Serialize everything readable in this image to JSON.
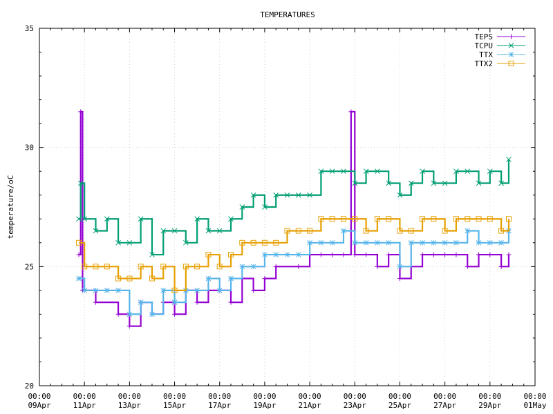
{
  "chart_data": {
    "type": "line",
    "title": "TEMPERATURES",
    "xlabel": "",
    "ylabel": "temperature/oC",
    "ylim": [
      20,
      35
    ],
    "yticks": [
      "20",
      "25",
      "30",
      "35"
    ],
    "xlim": [
      "2021-04-09 00:00",
      "2021-05-01 00:00"
    ],
    "xtick_labels": [
      {
        "time": "00:00",
        "date": "09Apr"
      },
      {
        "time": "00:00",
        "date": "11Apr"
      },
      {
        "time": "00:00",
        "date": "13Apr"
      },
      {
        "time": "00:00",
        "date": "15Apr"
      },
      {
        "time": "00:00",
        "date": "17Apr"
      },
      {
        "time": "00:00",
        "date": "19Apr"
      },
      {
        "time": "00:00",
        "date": "21Apr"
      },
      {
        "time": "00:00",
        "date": "23Apr"
      },
      {
        "time": "00:00",
        "date": "25Apr"
      },
      {
        "time": "00:00",
        "date": "27Apr"
      },
      {
        "time": "00:00",
        "date": "29Apr"
      },
      {
        "time": "00:00",
        "date": "01May"
      }
    ],
    "grid": true,
    "legend_position": "top-right",
    "series": [
      {
        "name": "TEPS",
        "color": "#9400d3",
        "marker": "plus",
        "points": [
          [
            "2021-04-10 18:00",
            25.5
          ],
          [
            "2021-04-10 20:00",
            31.5
          ],
          [
            "2021-04-10 22:00",
            24.0
          ],
          [
            "2021-04-11 12:00",
            23.5
          ],
          [
            "2021-04-12 12:00",
            23.0
          ],
          [
            "2021-04-13 00:00",
            22.5
          ],
          [
            "2021-04-13 12:00",
            23.5
          ],
          [
            "2021-04-14 00:00",
            23.0
          ],
          [
            "2021-04-14 12:00",
            23.5
          ],
          [
            "2021-04-15 00:00",
            23.0
          ],
          [
            "2021-04-15 12:00",
            24.0
          ],
          [
            "2021-04-16 00:00",
            23.5
          ],
          [
            "2021-04-16 12:00",
            24.0
          ],
          [
            "2021-04-17 00:00",
            24.0
          ],
          [
            "2021-04-17 12:00",
            23.5
          ],
          [
            "2021-04-18 00:00",
            24.5
          ],
          [
            "2021-04-18 12:00",
            24.0
          ],
          [
            "2021-04-19 00:00",
            24.5
          ],
          [
            "2021-04-19 12:00",
            25.0
          ],
          [
            "2021-04-20 12:00",
            25.0
          ],
          [
            "2021-04-21 00:00",
            25.5
          ],
          [
            "2021-04-21 12:00",
            25.5
          ],
          [
            "2021-04-22 00:00",
            25.5
          ],
          [
            "2021-04-22 12:00",
            25.5
          ],
          [
            "2021-04-22 20:00",
            31.5
          ],
          [
            "2021-04-23 00:00",
            25.5
          ],
          [
            "2021-04-23 12:00",
            25.5
          ],
          [
            "2021-04-24 00:00",
            25.0
          ],
          [
            "2021-04-24 12:00",
            25.5
          ],
          [
            "2021-04-25 00:00",
            24.5
          ],
          [
            "2021-04-25 12:00",
            25.0
          ],
          [
            "2021-04-26 00:00",
            25.5
          ],
          [
            "2021-04-26 12:00",
            25.5
          ],
          [
            "2021-04-27 00:00",
            25.5
          ],
          [
            "2021-04-27 12:00",
            25.5
          ],
          [
            "2021-04-28 00:00",
            25.0
          ],
          [
            "2021-04-28 12:00",
            25.5
          ],
          [
            "2021-04-29 00:00",
            25.5
          ],
          [
            "2021-04-29 12:00",
            25.0
          ],
          [
            "2021-04-29 20:00",
            25.5
          ]
        ]
      },
      {
        "name": "TCPU",
        "color": "#009e73",
        "marker": "cross",
        "points": [
          [
            "2021-04-10 18:00",
            27.0
          ],
          [
            "2021-04-10 20:00",
            28.5
          ],
          [
            "2021-04-11 00:00",
            27.0
          ],
          [
            "2021-04-11 12:00",
            26.5
          ],
          [
            "2021-04-12 00:00",
            27.0
          ],
          [
            "2021-04-12 12:00",
            26.0
          ],
          [
            "2021-04-13 00:00",
            26.0
          ],
          [
            "2021-04-13 12:00",
            27.0
          ],
          [
            "2021-04-14 00:00",
            25.5
          ],
          [
            "2021-04-14 12:00",
            26.5
          ],
          [
            "2021-04-15 00:00",
            26.5
          ],
          [
            "2021-04-15 12:00",
            26.0
          ],
          [
            "2021-04-16 00:00",
            27.0
          ],
          [
            "2021-04-16 12:00",
            26.5
          ],
          [
            "2021-04-17 00:00",
            26.5
          ],
          [
            "2021-04-17 12:00",
            27.0
          ],
          [
            "2021-04-18 00:00",
            27.5
          ],
          [
            "2021-04-18 12:00",
            28.0
          ],
          [
            "2021-04-19 00:00",
            27.5
          ],
          [
            "2021-04-19 12:00",
            28.0
          ],
          [
            "2021-04-20 00:00",
            28.0
          ],
          [
            "2021-04-20 12:00",
            28.0
          ],
          [
            "2021-04-21 00:00",
            28.0
          ],
          [
            "2021-04-21 12:00",
            29.0
          ],
          [
            "2021-04-22 00:00",
            29.0
          ],
          [
            "2021-04-22 12:00",
            29.0
          ],
          [
            "2021-04-23 00:00",
            28.5
          ],
          [
            "2021-04-23 12:00",
            29.0
          ],
          [
            "2021-04-24 00:00",
            29.0
          ],
          [
            "2021-04-24 12:00",
            28.5
          ],
          [
            "2021-04-25 00:00",
            28.0
          ],
          [
            "2021-04-25 12:00",
            28.5
          ],
          [
            "2021-04-26 00:00",
            29.0
          ],
          [
            "2021-04-26 12:00",
            28.5
          ],
          [
            "2021-04-27 00:00",
            28.5
          ],
          [
            "2021-04-27 12:00",
            29.0
          ],
          [
            "2021-04-28 00:00",
            29.0
          ],
          [
            "2021-04-28 12:00",
            28.5
          ],
          [
            "2021-04-29 00:00",
            29.0
          ],
          [
            "2021-04-29 12:00",
            28.5
          ],
          [
            "2021-04-29 20:00",
            29.5
          ]
        ]
      },
      {
        "name": "TTX",
        "color": "#56b4e9",
        "marker": "star",
        "points": [
          [
            "2021-04-10 18:00",
            24.5
          ],
          [
            "2021-04-11 00:00",
            24.0
          ],
          [
            "2021-04-11 12:00",
            24.0
          ],
          [
            "2021-04-12 00:00",
            24.0
          ],
          [
            "2021-04-12 12:00",
            24.0
          ],
          [
            "2021-04-13 00:00",
            23.0
          ],
          [
            "2021-04-13 12:00",
            23.5
          ],
          [
            "2021-04-14 00:00",
            23.0
          ],
          [
            "2021-04-14 12:00",
            24.0
          ],
          [
            "2021-04-15 00:00",
            23.5
          ],
          [
            "2021-04-15 12:00",
            24.0
          ],
          [
            "2021-04-16 00:00",
            24.0
          ],
          [
            "2021-04-16 12:00",
            24.5
          ],
          [
            "2021-04-17 00:00",
            24.0
          ],
          [
            "2021-04-17 12:00",
            24.5
          ],
          [
            "2021-04-18 00:00",
            25.0
          ],
          [
            "2021-04-18 12:00",
            25.0
          ],
          [
            "2021-04-19 00:00",
            25.5
          ],
          [
            "2021-04-19 12:00",
            25.5
          ],
          [
            "2021-04-20 00:00",
            25.5
          ],
          [
            "2021-04-20 12:00",
            25.5
          ],
          [
            "2021-04-21 00:00",
            26.0
          ],
          [
            "2021-04-21 12:00",
            26.0
          ],
          [
            "2021-04-22 00:00",
            26.0
          ],
          [
            "2021-04-22 12:00",
            26.5
          ],
          [
            "2021-04-23 00:00",
            26.0
          ],
          [
            "2021-04-23 12:00",
            26.0
          ],
          [
            "2021-04-24 00:00",
            26.0
          ],
          [
            "2021-04-24 12:00",
            26.0
          ],
          [
            "2021-04-25 00:00",
            25.0
          ],
          [
            "2021-04-25 12:00",
            26.0
          ],
          [
            "2021-04-26 00:00",
            26.0
          ],
          [
            "2021-04-26 12:00",
            26.0
          ],
          [
            "2021-04-27 00:00",
            26.0
          ],
          [
            "2021-04-27 12:00",
            26.0
          ],
          [
            "2021-04-28 00:00",
            26.5
          ],
          [
            "2021-04-28 12:00",
            26.0
          ],
          [
            "2021-04-29 00:00",
            26.0
          ],
          [
            "2021-04-29 12:00",
            26.0
          ],
          [
            "2021-04-29 20:00",
            26.5
          ]
        ]
      },
      {
        "name": "TTX2",
        "color": "#e69f00",
        "marker": "box",
        "points": [
          [
            "2021-04-10 18:00",
            26.0
          ],
          [
            "2021-04-11 00:00",
            25.0
          ],
          [
            "2021-04-11 12:00",
            25.0
          ],
          [
            "2021-04-12 00:00",
            25.0
          ],
          [
            "2021-04-12 12:00",
            24.5
          ],
          [
            "2021-04-13 00:00",
            24.5
          ],
          [
            "2021-04-13 12:00",
            25.0
          ],
          [
            "2021-04-14 00:00",
            24.5
          ],
          [
            "2021-04-14 12:00",
            25.0
          ],
          [
            "2021-04-15 00:00",
            24.0
          ],
          [
            "2021-04-15 12:00",
            25.0
          ],
          [
            "2021-04-16 00:00",
            25.0
          ],
          [
            "2021-04-16 12:00",
            25.5
          ],
          [
            "2021-04-17 00:00",
            25.0
          ],
          [
            "2021-04-17 12:00",
            25.5
          ],
          [
            "2021-04-18 00:00",
            26.0
          ],
          [
            "2021-04-18 12:00",
            26.0
          ],
          [
            "2021-04-19 00:00",
            26.0
          ],
          [
            "2021-04-19 12:00",
            26.0
          ],
          [
            "2021-04-20 00:00",
            26.5
          ],
          [
            "2021-04-20 12:00",
            26.5
          ],
          [
            "2021-04-21 00:00",
            26.5
          ],
          [
            "2021-04-21 12:00",
            27.0
          ],
          [
            "2021-04-22 00:00",
            27.0
          ],
          [
            "2021-04-22 12:00",
            27.0
          ],
          [
            "2021-04-23 00:00",
            27.0
          ],
          [
            "2021-04-23 12:00",
            26.5
          ],
          [
            "2021-04-24 00:00",
            27.0
          ],
          [
            "2021-04-24 12:00",
            27.0
          ],
          [
            "2021-04-25 00:00",
            26.5
          ],
          [
            "2021-04-25 12:00",
            26.5
          ],
          [
            "2021-04-26 00:00",
            27.0
          ],
          [
            "2021-04-26 12:00",
            27.0
          ],
          [
            "2021-04-27 00:00",
            26.5
          ],
          [
            "2021-04-27 12:00",
            27.0
          ],
          [
            "2021-04-28 00:00",
            27.0
          ],
          [
            "2021-04-28 12:00",
            27.0
          ],
          [
            "2021-04-29 00:00",
            27.0
          ],
          [
            "2021-04-29 12:00",
            26.5
          ],
          [
            "2021-04-29 20:00",
            27.0
          ]
        ]
      }
    ]
  }
}
